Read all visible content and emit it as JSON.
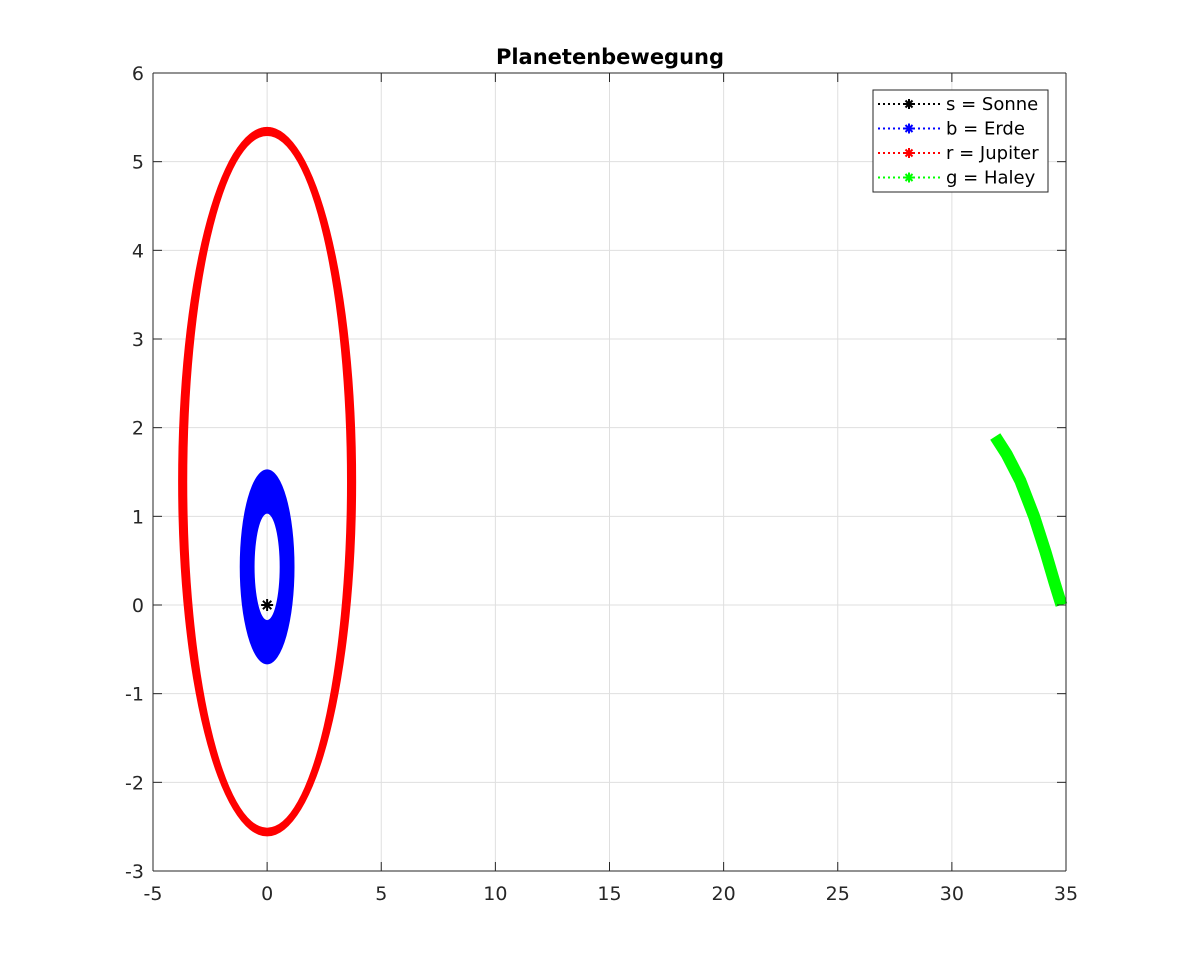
{
  "chart_data": {
    "type": "line",
    "title": "Planetenbewegung",
    "xlabel": "",
    "ylabel": "",
    "xlim": [
      -5,
      35
    ],
    "ylim": [
      -3,
      6
    ],
    "x_ticks": [
      -5,
      0,
      5,
      10,
      15,
      20,
      25,
      30,
      35
    ],
    "y_ticks": [
      -3,
      -2,
      -1,
      0,
      1,
      2,
      3,
      4,
      5,
      6
    ],
    "x_tick_labels": [
      "-5",
      "0",
      "5",
      "10",
      "15",
      "20",
      "25",
      "30",
      "35"
    ],
    "y_tick_labels": [
      "-3",
      "-2",
      "-1",
      "0",
      "1",
      "2",
      "3",
      "4",
      "5",
      "6"
    ],
    "grid": true,
    "legend_position": "top-right",
    "series": [
      {
        "name": "s = Sonne",
        "color": "#000000",
        "kind": "point",
        "points": [
          [
            0,
            0
          ]
        ]
      },
      {
        "name": "b = Erde",
        "color": "#0000ff",
        "kind": "orbit",
        "ellipses": [
          {
            "center": [
              0,
              0.43
            ],
            "half_width": 1.2,
            "half_height": 1.1
          },
          {
            "center": [
              0,
              0.43
            ],
            "half_width": 0.55,
            "half_height": 0.6
          }
        ],
        "band_extent": {
          "x": [
            -1.2,
            1.2
          ],
          "y": [
            -0.67,
            1.53
          ]
        }
      },
      {
        "name": "r = Jupiter",
        "color": "#ff0000",
        "kind": "orbit",
        "ellipses": [
          {
            "center": [
              0,
              1.39
            ],
            "half_width": 3.9,
            "half_height": 4.0
          },
          {
            "center": [
              0,
              1.39
            ],
            "half_width": 3.5,
            "half_height": 3.9
          }
        ],
        "band_extent": {
          "x": [
            -3.9,
            3.9
          ],
          "y": [
            -2.6,
            5.4
          ]
        }
      },
      {
        "name": "g = Haley",
        "color": "#00ff00",
        "kind": "arc",
        "points": [
          [
            31.9,
            1.9
          ],
          [
            32.4,
            1.7
          ],
          [
            33.0,
            1.4
          ],
          [
            33.6,
            1.0
          ],
          [
            34.1,
            0.6
          ],
          [
            34.5,
            0.25
          ],
          [
            34.8,
            0.0
          ]
        ]
      }
    ]
  }
}
